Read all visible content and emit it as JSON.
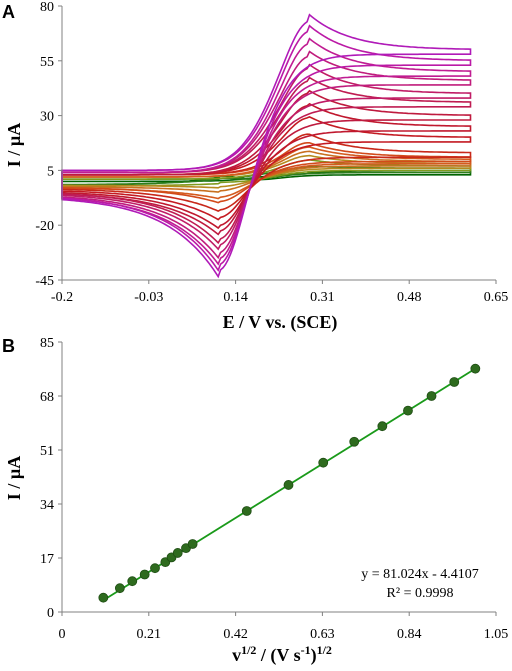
{
  "panels": {
    "a_letter": "A",
    "b_letter": "B"
  },
  "chart_data": [
    {
      "type": "line",
      "panel": "A",
      "xlabel": "E / V vs. (SCE)",
      "ylabel": "I / µA",
      "xlim": [
        -0.2,
        0.65
      ],
      "ylim": [
        -45,
        80
      ],
      "x_ticks": [
        "-0.2",
        "-0.03",
        "0.14",
        "0.31",
        "0.48",
        "0.65"
      ],
      "y_ticks": [
        "80",
        "55",
        "30",
        "5",
        "-20",
        "-45"
      ],
      "x_tick_values": [
        -0.2,
        -0.03,
        0.14,
        0.31,
        0.48,
        0.65
      ],
      "y_tick_values": [
        80,
        55,
        30,
        5,
        -20,
        -45
      ],
      "grid": false,
      "curve_shape": {
        "start_potential": -0.2,
        "end_potential": 0.6,
        "anodic_peak_potential": 0.28,
        "cathodic_peak_potential": 0.11,
        "crossing_potential": 0.2,
        "crossing_current": 4
      },
      "series": [
        {
          "color": "#006400",
          "anodic_peak": 4,
          "cathodic_peak": 2,
          "switch_current": 5,
          "start_current": 0
        },
        {
          "color": "#2e7d1e",
          "anodic_peak": 7,
          "cathodic_peak": 1,
          "switch_current": 6,
          "start_current": 1
        },
        {
          "color": "#7f9a1e",
          "anodic_peak": 10,
          "cathodic_peak": -1,
          "switch_current": 7,
          "start_current": 1
        },
        {
          "color": "#b58a1e",
          "anodic_peak": 12,
          "cathodic_peak": -3,
          "switch_current": 8,
          "start_current": 2
        },
        {
          "color": "#c87020",
          "anodic_peak": 14,
          "cathodic_peak": -5,
          "switch_current": 9,
          "start_current": 2
        },
        {
          "color": "#d45a1e",
          "anodic_peak": 16,
          "cathodic_peak": -8,
          "switch_current": 10,
          "start_current": 2
        },
        {
          "color": "#d24a1a",
          "anodic_peak": 18,
          "cathodic_peak": -10,
          "switch_current": 11,
          "start_current": 3
        },
        {
          "color": "#c8281a",
          "anodic_peak": 22,
          "cathodic_peak": -14,
          "switch_current": 13,
          "start_current": 3
        },
        {
          "color": "#c41a22",
          "anodic_peak": 30,
          "cathodic_peak": -18,
          "switch_current": 20,
          "start_current": 3
        },
        {
          "color": "#c0182e",
          "anodic_peak": 36,
          "cathodic_peak": -22,
          "switch_current": 25,
          "start_current": 3
        },
        {
          "color": "#bf1a3e",
          "anodic_peak": 42,
          "cathodic_peak": -25,
          "switch_current": 30,
          "start_current": 3
        },
        {
          "color": "#bf1c52",
          "anodic_peak": 48,
          "cathodic_peak": -29,
          "switch_current": 36,
          "start_current": 4
        },
        {
          "color": "#c01c66",
          "anodic_peak": 54,
          "cathodic_peak": -32,
          "switch_current": 40,
          "start_current": 4
        },
        {
          "color": "#c01c7c",
          "anodic_peak": 60,
          "cathodic_peak": -36,
          "switch_current": 46,
          "start_current": 4
        },
        {
          "color": "#c01c92",
          "anodic_peak": 66,
          "cathodic_peak": -39,
          "switch_current": 50,
          "start_current": 4
        },
        {
          "color": "#bb1aa6",
          "anodic_peak": 72,
          "cathodic_peak": -42,
          "switch_current": 55,
          "start_current": 5
        },
        {
          "color": "#b01ab8",
          "anodic_peak": 77,
          "cathodic_peak": -45,
          "switch_current": 60,
          "start_current": 5
        }
      ]
    },
    {
      "type": "scatter",
      "panel": "B",
      "xlabel_main": "v",
      "xlabel_sup1": "1/2",
      "xlabel_mid": " / (V s",
      "xlabel_sup2": "-1",
      "xlabel_end": ")",
      "xlabel_sup3": "1/2",
      "ylabel": "I / µA",
      "xlim": [
        0,
        1.05
      ],
      "ylim": [
        0,
        85
      ],
      "x_ticks": [
        "0",
        "0.21",
        "0.42",
        "0.63",
        "0.84",
        "1.05"
      ],
      "y_ticks": [
        "85",
        "68",
        "51",
        "34",
        "17",
        "0"
      ],
      "x_tick_values": [
        0,
        0.21,
        0.42,
        0.63,
        0.84,
        1.05
      ],
      "y_tick_values": [
        85,
        68,
        51,
        34,
        17,
        0
      ],
      "grid": false,
      "marker_color": "#2e6b1e",
      "line_color": "#1a9a1a",
      "points": [
        {
          "x": 0.1,
          "y": 4.5
        },
        {
          "x": 0.14,
          "y": 7.5
        },
        {
          "x": 0.17,
          "y": 9.7
        },
        {
          "x": 0.2,
          "y": 11.8
        },
        {
          "x": 0.225,
          "y": 13.8
        },
        {
          "x": 0.25,
          "y": 15.7
        },
        {
          "x": 0.265,
          "y": 17.2
        },
        {
          "x": 0.28,
          "y": 18.6
        },
        {
          "x": 0.3,
          "y": 20.1
        },
        {
          "x": 0.316,
          "y": 21.4
        },
        {
          "x": 0.447,
          "y": 31.8
        },
        {
          "x": 0.548,
          "y": 40.0
        },
        {
          "x": 0.632,
          "y": 47.0
        },
        {
          "x": 0.707,
          "y": 53.6
        },
        {
          "x": 0.775,
          "y": 58.5
        },
        {
          "x": 0.837,
          "y": 63.4
        },
        {
          "x": 0.894,
          "y": 68.0
        },
        {
          "x": 0.949,
          "y": 72.4
        },
        {
          "x": 1.0,
          "y": 76.6
        }
      ],
      "trendline": {
        "slope": 81.024,
        "intercept": -4.4107
      },
      "equation": "y = 81.024x - 4.4107",
      "r2_label": "R² = 0.9998"
    }
  ]
}
